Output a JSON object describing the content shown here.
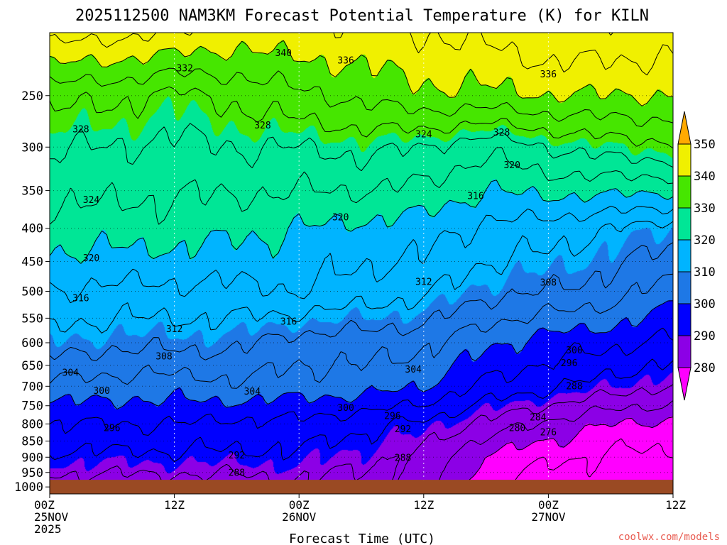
{
  "chart_data": {
    "type": "heatmap",
    "title": "2025112500 NAM3KM Forecast Potential Temperature (K) for KILN",
    "xlabel": "Forecast Time (UTC)",
    "ylabel": "",
    "x_ticks": [
      {
        "hour": 0,
        "lines": [
          "00Z",
          "25NOV",
          "2025"
        ]
      },
      {
        "hour": 12,
        "lines": [
          "12Z"
        ]
      },
      {
        "hour": 24,
        "lines": [
          "00Z",
          "26NOV"
        ]
      },
      {
        "hour": 36,
        "lines": [
          "12Z"
        ]
      },
      {
        "hour": 48,
        "lines": [
          "00Z",
          "27NOV"
        ]
      },
      {
        "hour": 60,
        "lines": [
          "12Z"
        ]
      }
    ],
    "x_range": [
      0,
      60
    ],
    "y_ticks": [
      250,
      300,
      350,
      400,
      450,
      500,
      550,
      600,
      650,
      700,
      750,
      800,
      850,
      900,
      950,
      1000
    ],
    "y_range": [
      200,
      1025
    ],
    "y_scale": "log-pressure",
    "ground_pressure": 975,
    "colorbar": {
      "ticks": [
        280,
        290,
        300,
        310,
        320,
        330,
        340,
        350
      ],
      "min": 270,
      "max": 360,
      "bands": [
        {
          "from": 270,
          "to": 280,
          "color": "#ff00ff"
        },
        {
          "from": 280,
          "to": 290,
          "color": "#8c00e6"
        },
        {
          "from": 290,
          "to": 300,
          "color": "#0000ff"
        },
        {
          "from": 300,
          "to": 310,
          "color": "#1e78e6"
        },
        {
          "from": 310,
          "to": 320,
          "color": "#00b4ff"
        },
        {
          "from": 320,
          "to": 330,
          "color": "#00e696"
        },
        {
          "from": 330,
          "to": 340,
          "color": "#46e600"
        },
        {
          "from": 340,
          "to": 350,
          "color": "#f0f000"
        },
        {
          "from": 350,
          "to": 360,
          "color": "#ffaa00"
        }
      ]
    },
    "contour_interval": 4,
    "field_anchors": {
      "hours": [
        0,
        6,
        12,
        18,
        24,
        30,
        36,
        42,
        48,
        54,
        60
      ],
      "pressures": [
        200,
        250,
        300,
        400,
        500,
        600,
        700,
        800,
        900,
        975
      ],
      "theta": [
        [
          346,
          345,
          344,
          342,
          343,
          343,
          344,
          345,
          347,
          347,
          346
        ],
        [
          333,
          333,
          331,
          333,
          335,
          337,
          339,
          339,
          340,
          340,
          340
        ],
        [
          328,
          328,
          327,
          328,
          328,
          329,
          328,
          325,
          328,
          330,
          331
        ],
        [
          322,
          322,
          322,
          321,
          320,
          319,
          318,
          315,
          314,
          312,
          310
        ],
        [
          316,
          315,
          315,
          315,
          316,
          314,
          313,
          309,
          308,
          306,
          302
        ],
        [
          310,
          309,
          309,
          309,
          306,
          306,
          305,
          301,
          298,
          297,
          295
        ],
        [
          303,
          302,
          302,
          303,
          302,
          302,
          300,
          295,
          293,
          290,
          288
        ],
        [
          296,
          296,
          296,
          295,
          295,
          293,
          291,
          287,
          283,
          280,
          279
        ],
        [
          291,
          291,
          291,
          291,
          291,
          289,
          287,
          279,
          277,
          275,
          275
        ],
        [
          287,
          287,
          287,
          287,
          288,
          287,
          286,
          277,
          274,
          274,
          274
        ]
      ]
    },
    "contour_labels": [
      {
        "value": "340",
        "hour": 22.5,
        "p": 215
      },
      {
        "value": "336",
        "hour": 28.5,
        "p": 221
      },
      {
        "value": "336",
        "hour": 48.0,
        "p": 232
      },
      {
        "value": "332",
        "hour": 13.0,
        "p": 227
      },
      {
        "value": "328",
        "hour": 3.0,
        "p": 282
      },
      {
        "value": "328",
        "hour": 20.5,
        "p": 278
      },
      {
        "value": "324",
        "hour": 36.0,
        "p": 287
      },
      {
        "value": "328",
        "hour": 43.5,
        "p": 285
      },
      {
        "value": "320",
        "hour": 44.5,
        "p": 320
      },
      {
        "value": "324",
        "hour": 4.0,
        "p": 362
      },
      {
        "value": "316",
        "hour": 41.0,
        "p": 357
      },
      {
        "value": "320",
        "hour": 28.0,
        "p": 385
      },
      {
        "value": "320",
        "hour": 4.0,
        "p": 445
      },
      {
        "value": "312",
        "hour": 36.0,
        "p": 484
      },
      {
        "value": "308",
        "hour": 48.0,
        "p": 485
      },
      {
        "value": "316",
        "hour": 3.0,
        "p": 513
      },
      {
        "value": "316",
        "hour": 23.0,
        "p": 557
      },
      {
        "value": "312",
        "hour": 12.0,
        "p": 572
      },
      {
        "value": "300",
        "hour": 50.5,
        "p": 617
      },
      {
        "value": "296",
        "hour": 50.0,
        "p": 645
      },
      {
        "value": "308",
        "hour": 11.0,
        "p": 630
      },
      {
        "value": "304",
        "hour": 2.0,
        "p": 668
      },
      {
        "value": "304",
        "hour": 35.0,
        "p": 660
      },
      {
        "value": "300",
        "hour": 5.0,
        "p": 712
      },
      {
        "value": "304",
        "hour": 19.5,
        "p": 714
      },
      {
        "value": "288",
        "hour": 50.5,
        "p": 700
      },
      {
        "value": "300",
        "hour": 28.5,
        "p": 756
      },
      {
        "value": "296",
        "hour": 33.0,
        "p": 778
      },
      {
        "value": "284",
        "hour": 47.0,
        "p": 782
      },
      {
        "value": "296",
        "hour": 6.0,
        "p": 812
      },
      {
        "value": "292",
        "hour": 34.0,
        "p": 815
      },
      {
        "value": "280",
        "hour": 45.0,
        "p": 812
      },
      {
        "value": "276",
        "hour": 48.0,
        "p": 825
      },
      {
        "value": "292",
        "hour": 18.0,
        "p": 895
      },
      {
        "value": "288",
        "hour": 34.0,
        "p": 903
      },
      {
        "value": "288",
        "hour": 18.0,
        "p": 952
      }
    ],
    "watermark": "coolwx.com/models"
  }
}
